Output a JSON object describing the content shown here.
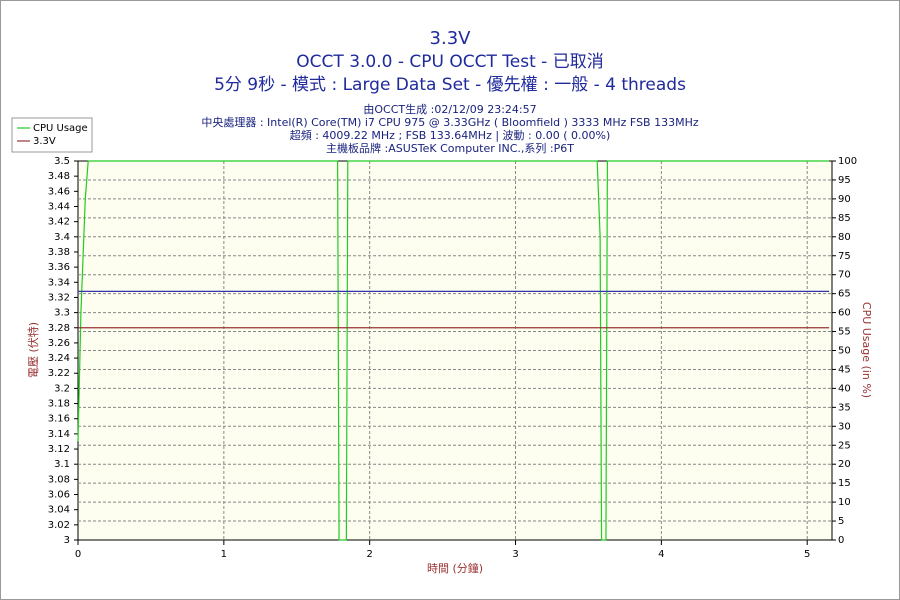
{
  "chart_data": {
    "type": "line",
    "title": "3.3V",
    "subtitle": [
      "OCCT 3.0.0 - CPU OCCT Test - 已取消",
      "5分 9秒 - 模式 : Large Data Set - 優先權 : 一般 - 4 threads"
    ],
    "info": [
      "由OCCT生成 :02/12/09 23:24:57",
      "中央處理器 : Intel(R) Core(TM) i7 CPU 975 @ 3.33GHz ( Bloomfield ) 3333 MHz FSB 133MHz",
      "超頻 : 4009.22 MHz ; FSB 133.64MHz | 波動 : 0.00 ( 0.00%)",
      "主機板品牌 :ASUSTeK Computer INC.,系列 :P6T"
    ],
    "x_label": "時間 (分鐘)",
    "y_label": "電壓 (伏特)",
    "y2_label": "CPU Usage (in %)",
    "xlim": [
      0,
      5.17
    ],
    "xticks": [
      0,
      1,
      2,
      3,
      4,
      5
    ],
    "ylim": [
      3,
      3.5
    ],
    "yticks": [
      3,
      3.02,
      3.04,
      3.06,
      3.08,
      3.1,
      3.12,
      3.14,
      3.16,
      3.18,
      3.2,
      3.22,
      3.24,
      3.26,
      3.28,
      3.3,
      3.32,
      3.34,
      3.36,
      3.38,
      3.4,
      3.42,
      3.44,
      3.46,
      3.48,
      3.5
    ],
    "y2lim": [
      0,
      100
    ],
    "y2ticks": [
      0,
      5,
      10,
      15,
      20,
      25,
      30,
      35,
      40,
      45,
      50,
      55,
      60,
      65,
      70,
      75,
      80,
      85,
      90,
      95,
      100
    ],
    "grid": true,
    "legend": "top-left",
    "series": [
      {
        "name": "CPU Usage",
        "color": "#22cc22",
        "axis": "y2",
        "x": [
          0,
          0.02,
          0.05,
          0.07,
          1.78,
          1.79,
          1.84,
          1.85,
          3.56,
          3.58,
          3.59,
          3.62,
          3.63,
          5.15
        ],
        "values": [
          26,
          60,
          90,
          100,
          100,
          0,
          0,
          100,
          100,
          80,
          0,
          0,
          100,
          100
        ]
      },
      {
        "name": "3.3V",
        "color": "#993333",
        "x": [
          0,
          5.15
        ],
        "values": [
          3.28,
          3.28
        ]
      },
      {
        "color": "#3333aa",
        "x": [
          0,
          5.15
        ],
        "values": [
          3.328,
          3.328
        ]
      }
    ]
  }
}
